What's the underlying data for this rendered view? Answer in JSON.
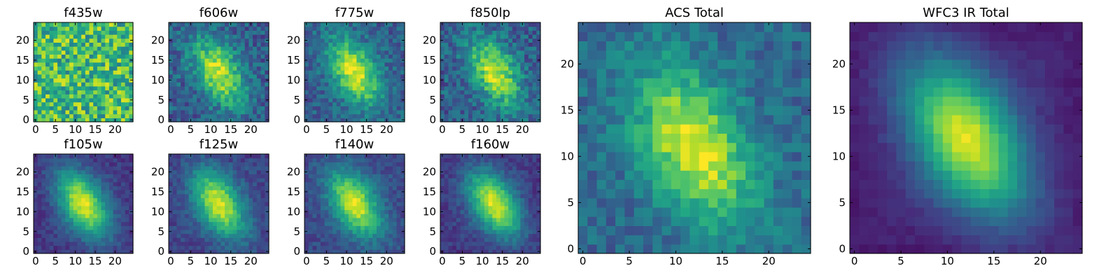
{
  "figure": {
    "colormap": "viridis",
    "background": "#ffffff"
  },
  "chart_data": [
    {
      "type": "heatmap",
      "title": "f435w",
      "shape": [
        25,
        25
      ],
      "xlim": [
        0,
        24
      ],
      "ylim": [
        0,
        24
      ],
      "xticks": [
        "0",
        "5",
        "10",
        "15",
        "20"
      ],
      "yticks": [
        "0",
        "5",
        "10",
        "15",
        "20"
      ],
      "center": [
        12,
        12
      ],
      "peak": 0.0,
      "noise": 0.55,
      "baseline": 0.68,
      "edge_fade": 0.0,
      "seed": 435
    },
    {
      "type": "heatmap",
      "title": "f606w",
      "shape": [
        25,
        25
      ],
      "xlim": [
        0,
        24
      ],
      "ylim": [
        0,
        24
      ],
      "xticks": [
        "0",
        "5",
        "10",
        "15",
        "20"
      ],
      "yticks": [
        "0",
        "5",
        "10",
        "15",
        "20"
      ],
      "center": [
        12,
        12
      ],
      "peak": 0.62,
      "noise": 0.3,
      "baseline": 0.3,
      "edge_fade": 0.0,
      "seed": 606
    },
    {
      "type": "heatmap",
      "title": "f775w",
      "shape": [
        25,
        25
      ],
      "xlim": [
        0,
        24
      ],
      "ylim": [
        0,
        24
      ],
      "xticks": [
        "0",
        "5",
        "10",
        "15",
        "20"
      ],
      "yticks": [
        "0",
        "5",
        "10",
        "15",
        "20"
      ],
      "center": [
        12,
        12
      ],
      "peak": 0.66,
      "noise": 0.25,
      "baseline": 0.3,
      "edge_fade": 0.0,
      "seed": 775
    },
    {
      "type": "heatmap",
      "title": "f850lp",
      "shape": [
        25,
        25
      ],
      "xlim": [
        0,
        24
      ],
      "ylim": [
        0,
        24
      ],
      "xticks": [
        "0",
        "5",
        "10",
        "15",
        "20"
      ],
      "yticks": [
        "0",
        "5",
        "10",
        "15",
        "20"
      ],
      "center": [
        13,
        12
      ],
      "peak": 0.62,
      "noise": 0.3,
      "baseline": 0.3,
      "edge_fade": 0.0,
      "seed": 850
    },
    {
      "type": "heatmap",
      "title": "f105w",
      "shape": [
        25,
        25
      ],
      "xlim": [
        0,
        24
      ],
      "ylim": [
        0,
        24
      ],
      "xticks": [
        "0",
        "5",
        "10",
        "15",
        "20"
      ],
      "yticks": [
        "0",
        "5",
        "10",
        "15",
        "20"
      ],
      "center": [
        12,
        12
      ],
      "peak": 0.7,
      "noise": 0.14,
      "baseline": 0.26,
      "edge_fade": 0.1,
      "seed": 105
    },
    {
      "type": "heatmap",
      "title": "f125w",
      "shape": [
        25,
        25
      ],
      "xlim": [
        0,
        24
      ],
      "ylim": [
        0,
        24
      ],
      "xticks": [
        "0",
        "5",
        "10",
        "15",
        "20"
      ],
      "yticks": [
        "0",
        "5",
        "10",
        "15",
        "20"
      ],
      "center": [
        12,
        12
      ],
      "peak": 0.68,
      "noise": 0.16,
      "baseline": 0.28,
      "edge_fade": 0.08,
      "seed": 125
    },
    {
      "type": "heatmap",
      "title": "f140w",
      "shape": [
        25,
        25
      ],
      "xlim": [
        0,
        24
      ],
      "ylim": [
        0,
        24
      ],
      "xticks": [
        "0",
        "5",
        "10",
        "15",
        "20"
      ],
      "yticks": [
        "0",
        "5",
        "10",
        "15",
        "20"
      ],
      "center": [
        12,
        12
      ],
      "peak": 0.66,
      "noise": 0.16,
      "baseline": 0.3,
      "edge_fade": 0.08,
      "seed": 140
    },
    {
      "type": "heatmap",
      "title": "f160w",
      "shape": [
        25,
        25
      ],
      "xlim": [
        0,
        24
      ],
      "ylim": [
        0,
        24
      ],
      "xticks": [
        "0",
        "5",
        "10",
        "15",
        "20"
      ],
      "yticks": [
        "0",
        "5",
        "10",
        "15",
        "20"
      ],
      "center": [
        13,
        12
      ],
      "peak": 0.7,
      "noise": 0.14,
      "baseline": 0.26,
      "edge_fade": 0.1,
      "seed": 160
    },
    {
      "type": "heatmap",
      "title": "ACS Total",
      "shape": [
        25,
        25
      ],
      "xlim": [
        0,
        24
      ],
      "ylim": [
        0,
        24
      ],
      "xticks": [
        "0",
        "5",
        "10",
        "15",
        "20"
      ],
      "yticks": [
        "0",
        "5",
        "10",
        "15",
        "20"
      ],
      "center": [
        12,
        11
      ],
      "peak": 0.62,
      "noise": 0.22,
      "baseline": 0.34,
      "edge_fade": 0.0,
      "seed": 901
    },
    {
      "type": "heatmap",
      "title": "WFC3 IR Total",
      "shape": [
        25,
        25
      ],
      "xlim": [
        0,
        24
      ],
      "ylim": [
        0,
        24
      ],
      "xticks": [
        "0",
        "5",
        "10",
        "15",
        "20"
      ],
      "yticks": [
        "0",
        "5",
        "10",
        "15",
        "20"
      ],
      "center": [
        12,
        12
      ],
      "peak": 0.74,
      "noise": 0.06,
      "baseline": 0.22,
      "edge_fade": 0.14,
      "seed": 902
    }
  ]
}
